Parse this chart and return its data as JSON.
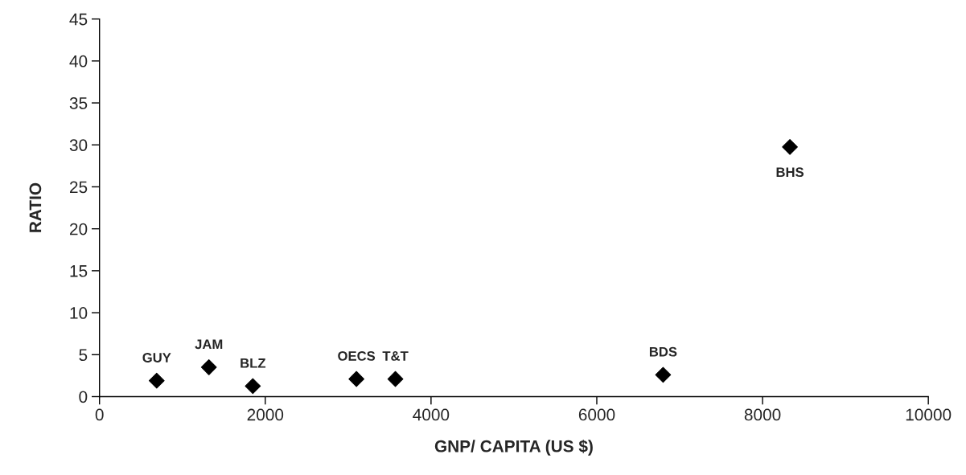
{
  "chart_data": {
    "type": "scatter",
    "xlabel": "GNP/ CAPITA (US $)",
    "ylabel": "RATIO",
    "x": [
      690,
      1320,
      1850,
      3100,
      3570,
      6800,
      8330
    ],
    "values": [
      1.9,
      3.5,
      1.25,
      2.1,
      2.1,
      2.6,
      29.75
    ],
    "color": "#000000",
    "marker": "diamond",
    "grid": false,
    "legend": false,
    "xlim": [
      0,
      10000
    ],
    "xticks": [
      0,
      2000,
      4000,
      6000,
      8000,
      10000
    ],
    "ylim": [
      0,
      45
    ],
    "yticks": [
      0,
      5,
      10,
      15,
      20,
      25,
      30,
      35,
      40,
      45
    ],
    "annotations": [
      {
        "text": "GUY",
        "x": 690,
        "y": 1.9
      },
      {
        "text": "JAM",
        "x": 1320,
        "y": 3.5
      },
      {
        "text": "BLZ",
        "x": 1850,
        "y": 1.25
      },
      {
        "text": "OECS",
        "x": 3100,
        "y": 2.1
      },
      {
        "text": "T&T",
        "x": 3570,
        "y": 2.1
      },
      {
        "text": "BDS",
        "x": 6800,
        "y": 2.6
      },
      {
        "text": "BHS",
        "x": 8330,
        "y": 29.75
      }
    ]
  }
}
